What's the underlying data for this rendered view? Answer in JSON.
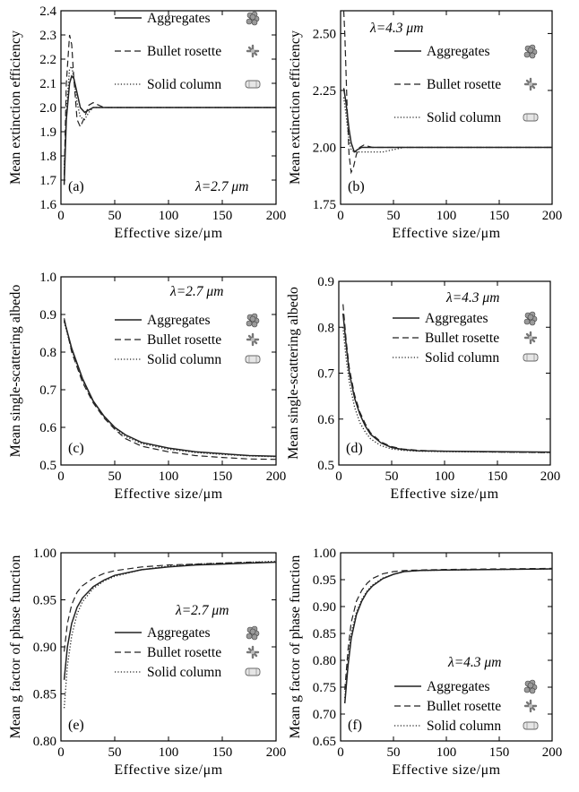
{
  "colors": {
    "axes": "#000000",
    "curve": "#222222",
    "background": "#ffffff"
  },
  "chart_data": [
    {
      "panel": "(a)",
      "type": "line",
      "xlabel": "Effective size/μm",
      "ylabel": "Mean extinction efficiency",
      "wavelength": "λ=2.7 μm",
      "xlim": [
        0,
        200
      ],
      "ylim": [
        1.6,
        2.4
      ],
      "xticks": [
        "0",
        "50",
        "100",
        "150",
        "200"
      ],
      "yticks": [
        "1.6",
        "1.7",
        "1.8",
        "1.9",
        "2.0",
        "2.1",
        "2.2",
        "2.3",
        "2.4"
      ],
      "series": [
        {
          "name": "Aggregates",
          "icon": "aggregate-crystal-icon",
          "style": "solid",
          "x": [
            3,
            5,
            8,
            10,
            12,
            15,
            18,
            22,
            26,
            30,
            40,
            50,
            100,
            150,
            200
          ],
          "y": [
            1.68,
            1.95,
            2.1,
            2.13,
            2.12,
            2.06,
            2.0,
            1.98,
            1.99,
            2.0,
            2.0,
            2.0,
            2.0,
            2.0,
            2.0
          ]
        },
        {
          "name": "Bullet rosette",
          "icon": "bullet-rosette-icon",
          "style": "dashed",
          "x": [
            3,
            5,
            8,
            10,
            12,
            15,
            18,
            22,
            26,
            30,
            35,
            40,
            50,
            100,
            150,
            200
          ],
          "y": [
            1.72,
            2.1,
            2.3,
            2.26,
            2.12,
            1.95,
            1.92,
            1.96,
            2.01,
            2.02,
            2.01,
            2.0,
            2.0,
            2.0,
            2.0,
            2.0
          ]
        },
        {
          "name": "Solid column",
          "icon": "solid-column-icon",
          "style": "dotted",
          "x": [
            3,
            5,
            8,
            10,
            12,
            15,
            18,
            22,
            26,
            30,
            40,
            50,
            100,
            150,
            200
          ],
          "y": [
            1.75,
            1.98,
            2.16,
            2.17,
            2.12,
            2.02,
            1.96,
            1.95,
            1.98,
            2.0,
            2.0,
            2.0,
            2.0,
            2.0,
            2.0
          ]
        }
      ]
    },
    {
      "panel": "(b)",
      "type": "line",
      "xlabel": "Effective size/μm",
      "ylabel": "Mean extinction efficiency",
      "wavelength": "λ=4.3 μm",
      "xlim": [
        0,
        200
      ],
      "ylim": [
        1.75,
        2.6
      ],
      "xticks": [
        "0",
        "50",
        "100",
        "150",
        "200"
      ],
      "yticks": [
        "1.75",
        "2.00",
        "2.25",
        "2.50"
      ],
      "series": [
        {
          "name": "Aggregates",
          "icon": "aggregate-crystal-icon",
          "style": "solid",
          "x": [
            3,
            5,
            8,
            10,
            13,
            16,
            20,
            25,
            30,
            40,
            50,
            100,
            150,
            200
          ],
          "y": [
            2.26,
            2.2,
            2.08,
            2.02,
            1.98,
            1.99,
            2.0,
            2.0,
            2.0,
            2.0,
            2.0,
            2.0,
            2.0,
            2.0
          ]
        },
        {
          "name": "Bullet rosette",
          "icon": "bullet-rosette-icon",
          "style": "dashed",
          "x": [
            3,
            4,
            6,
            8,
            10,
            12,
            15,
            18,
            22,
            30,
            40,
            50,
            100,
            150,
            200
          ],
          "y": [
            2.6,
            2.5,
            2.2,
            1.97,
            1.89,
            1.91,
            1.97,
            2.0,
            2.01,
            2.0,
            2.0,
            2.0,
            2.0,
            2.0,
            2.0
          ]
        },
        {
          "name": "Solid column",
          "icon": "solid-column-icon",
          "style": "dotted",
          "x": [
            3,
            5,
            8,
            10,
            13,
            16,
            20,
            25,
            30,
            40,
            50,
            60,
            100,
            150,
            200
          ],
          "y": [
            2.22,
            2.15,
            2.03,
            1.99,
            1.98,
            1.98,
            1.98,
            1.98,
            1.98,
            1.98,
            1.99,
            2.0,
            2.0,
            2.0,
            2.0
          ]
        }
      ]
    },
    {
      "panel": "(c)",
      "type": "line",
      "xlabel": "Effective size/μm",
      "ylabel": "Mean single-scattering albedo",
      "wavelength": "λ=2.7 μm",
      "xlim": [
        0,
        200
      ],
      "ylim": [
        0.5,
        1.0
      ],
      "xticks": [
        "0",
        "50",
        "100",
        "150",
        "200"
      ],
      "yticks": [
        "0.5",
        "0.6",
        "0.7",
        "0.8",
        "0.9",
        "1.0"
      ],
      "series": [
        {
          "name": "Aggregates",
          "icon": "aggregate-crystal-icon",
          "style": "solid",
          "x": [
            3,
            10,
            20,
            30,
            40,
            50,
            60,
            75,
            100,
            125,
            150,
            175,
            200
          ],
          "y": [
            0.885,
            0.81,
            0.73,
            0.67,
            0.63,
            0.6,
            0.58,
            0.56,
            0.545,
            0.535,
            0.53,
            0.525,
            0.523
          ]
        },
        {
          "name": "Bullet rosette",
          "icon": "bullet-rosette-icon",
          "style": "dashed",
          "x": [
            3,
            10,
            20,
            30,
            40,
            50,
            60,
            75,
            100,
            125,
            150,
            175,
            200
          ],
          "y": [
            0.89,
            0.8,
            0.72,
            0.665,
            0.625,
            0.595,
            0.57,
            0.55,
            0.535,
            0.525,
            0.52,
            0.516,
            0.515
          ]
        },
        {
          "name": "Solid column",
          "icon": "solid-column-icon",
          "style": "dotted",
          "x": [
            3,
            10,
            20,
            30,
            40,
            50,
            60,
            75,
            100,
            125,
            150,
            175,
            200
          ],
          "y": [
            0.88,
            0.805,
            0.725,
            0.668,
            0.628,
            0.598,
            0.576,
            0.557,
            0.542,
            0.533,
            0.528,
            0.524,
            0.522
          ]
        }
      ]
    },
    {
      "panel": "(d)",
      "type": "line",
      "xlabel": "Effective size/μm",
      "ylabel": "Mean single-scattering albedo",
      "wavelength": "λ=4.3 μm",
      "xlim": [
        0,
        200
      ],
      "ylim": [
        0.5,
        0.9
      ],
      "xticks": [
        "0",
        "50",
        "100",
        "150",
        "200"
      ],
      "yticks": [
        "0.5",
        "0.6",
        "0.7",
        "0.8",
        "0.9"
      ],
      "series": [
        {
          "name": "Aggregates",
          "icon": "aggregate-crystal-icon",
          "style": "solid",
          "x": [
            4,
            7,
            10,
            15,
            20,
            25,
            30,
            40,
            50,
            60,
            75,
            100,
            150,
            200
          ],
          "y": [
            0.83,
            0.76,
            0.7,
            0.645,
            0.61,
            0.585,
            0.567,
            0.548,
            0.538,
            0.534,
            0.531,
            0.53,
            0.529,
            0.528
          ]
        },
        {
          "name": "Bullet rosette",
          "icon": "bullet-rosette-icon",
          "style": "dashed",
          "x": [
            4,
            7,
            10,
            15,
            20,
            25,
            30,
            40,
            50,
            60,
            75,
            100,
            150,
            200
          ],
          "y": [
            0.85,
            0.77,
            0.71,
            0.652,
            0.615,
            0.59,
            0.57,
            0.55,
            0.54,
            0.535,
            0.532,
            0.53,
            0.528,
            0.527
          ]
        },
        {
          "name": "Solid column",
          "icon": "solid-column-icon",
          "style": "dotted",
          "x": [
            4,
            7,
            10,
            15,
            20,
            25,
            30,
            40,
            50,
            60,
            75,
            100,
            150,
            200
          ],
          "y": [
            0.8,
            0.73,
            0.68,
            0.625,
            0.592,
            0.572,
            0.557,
            0.542,
            0.535,
            0.532,
            0.53,
            0.529,
            0.528,
            0.527
          ]
        }
      ]
    },
    {
      "panel": "(e)",
      "type": "line",
      "xlabel": "Effective size/μm",
      "ylabel": "Mean g factor of phase function",
      "wavelength": "λ=2.7 μm",
      "xlim": [
        0,
        200
      ],
      "ylim": [
        0.8,
        1.0
      ],
      "xticks": [
        "0",
        "50",
        "100",
        "150",
        "200"
      ],
      "yticks": [
        "0.80",
        "0.85",
        "0.90",
        "0.95",
        "1.00"
      ],
      "series": [
        {
          "name": "Aggregates",
          "icon": "aggregate-crystal-icon",
          "style": "solid",
          "x": [
            3,
            6,
            10,
            15,
            20,
            30,
            40,
            50,
            75,
            100,
            125,
            150,
            175,
            200
          ],
          "y": [
            0.865,
            0.9,
            0.925,
            0.942,
            0.952,
            0.964,
            0.971,
            0.976,
            0.982,
            0.985,
            0.987,
            0.988,
            0.989,
            0.99
          ]
        },
        {
          "name": "Bullet rosette",
          "icon": "bullet-rosette-icon",
          "style": "dashed",
          "x": [
            3,
            6,
            10,
            15,
            20,
            30,
            40,
            50,
            75,
            100,
            125,
            150,
            175,
            200
          ],
          "y": [
            0.895,
            0.925,
            0.945,
            0.958,
            0.965,
            0.973,
            0.978,
            0.981,
            0.985,
            0.987,
            0.988,
            0.989,
            0.99,
            0.99
          ]
        },
        {
          "name": "Solid column",
          "icon": "solid-column-icon",
          "style": "dotted",
          "x": [
            3,
            6,
            10,
            15,
            20,
            30,
            40,
            50,
            75,
            100,
            125,
            150,
            175,
            200
          ],
          "y": [
            0.835,
            0.88,
            0.912,
            0.935,
            0.948,
            0.962,
            0.97,
            0.975,
            0.982,
            0.986,
            0.988,
            0.989,
            0.99,
            0.991
          ]
        }
      ]
    },
    {
      "panel": "(f)",
      "type": "line",
      "xlabel": "Effective size/μm",
      "ylabel": "Mean g factor of phase function",
      "wavelength": "λ=4.3 μm",
      "xlim": [
        0,
        200
      ],
      "ylim": [
        0.65,
        1.0
      ],
      "xticks": [
        "0",
        "50",
        "100",
        "150",
        "200"
      ],
      "yticks": [
        "0.65",
        "0.70",
        "0.75",
        "0.80",
        "0.85",
        "0.90",
        "0.95",
        "1.00"
      ],
      "series": [
        {
          "name": "Aggregates",
          "icon": "aggregate-crystal-icon",
          "style": "solid",
          "x": [
            4,
            7,
            10,
            15,
            20,
            25,
            30,
            40,
            50,
            60,
            75,
            100,
            150,
            200
          ],
          "y": [
            0.72,
            0.79,
            0.84,
            0.885,
            0.91,
            0.927,
            0.938,
            0.952,
            0.96,
            0.965,
            0.967,
            0.968,
            0.969,
            0.97
          ]
        },
        {
          "name": "Bullet rosette",
          "icon": "bullet-rosette-icon",
          "style": "dashed",
          "x": [
            4,
            7,
            10,
            15,
            20,
            25,
            30,
            40,
            50,
            60,
            75,
            100,
            150,
            200
          ],
          "y": [
            0.745,
            0.82,
            0.87,
            0.91,
            0.93,
            0.943,
            0.952,
            0.961,
            0.965,
            0.967,
            0.968,
            0.969,
            0.97,
            0.971
          ]
        },
        {
          "name": "Solid column",
          "icon": "solid-column-icon",
          "style": "dotted",
          "x": [
            4,
            7,
            10,
            15,
            20,
            25,
            30,
            40,
            50,
            60,
            75,
            100,
            150,
            200
          ],
          "y": [
            0.73,
            0.8,
            0.85,
            0.89,
            0.913,
            0.929,
            0.94,
            0.953,
            0.96,
            0.965,
            0.967,
            0.968,
            0.969,
            0.97
          ]
        }
      ]
    }
  ]
}
